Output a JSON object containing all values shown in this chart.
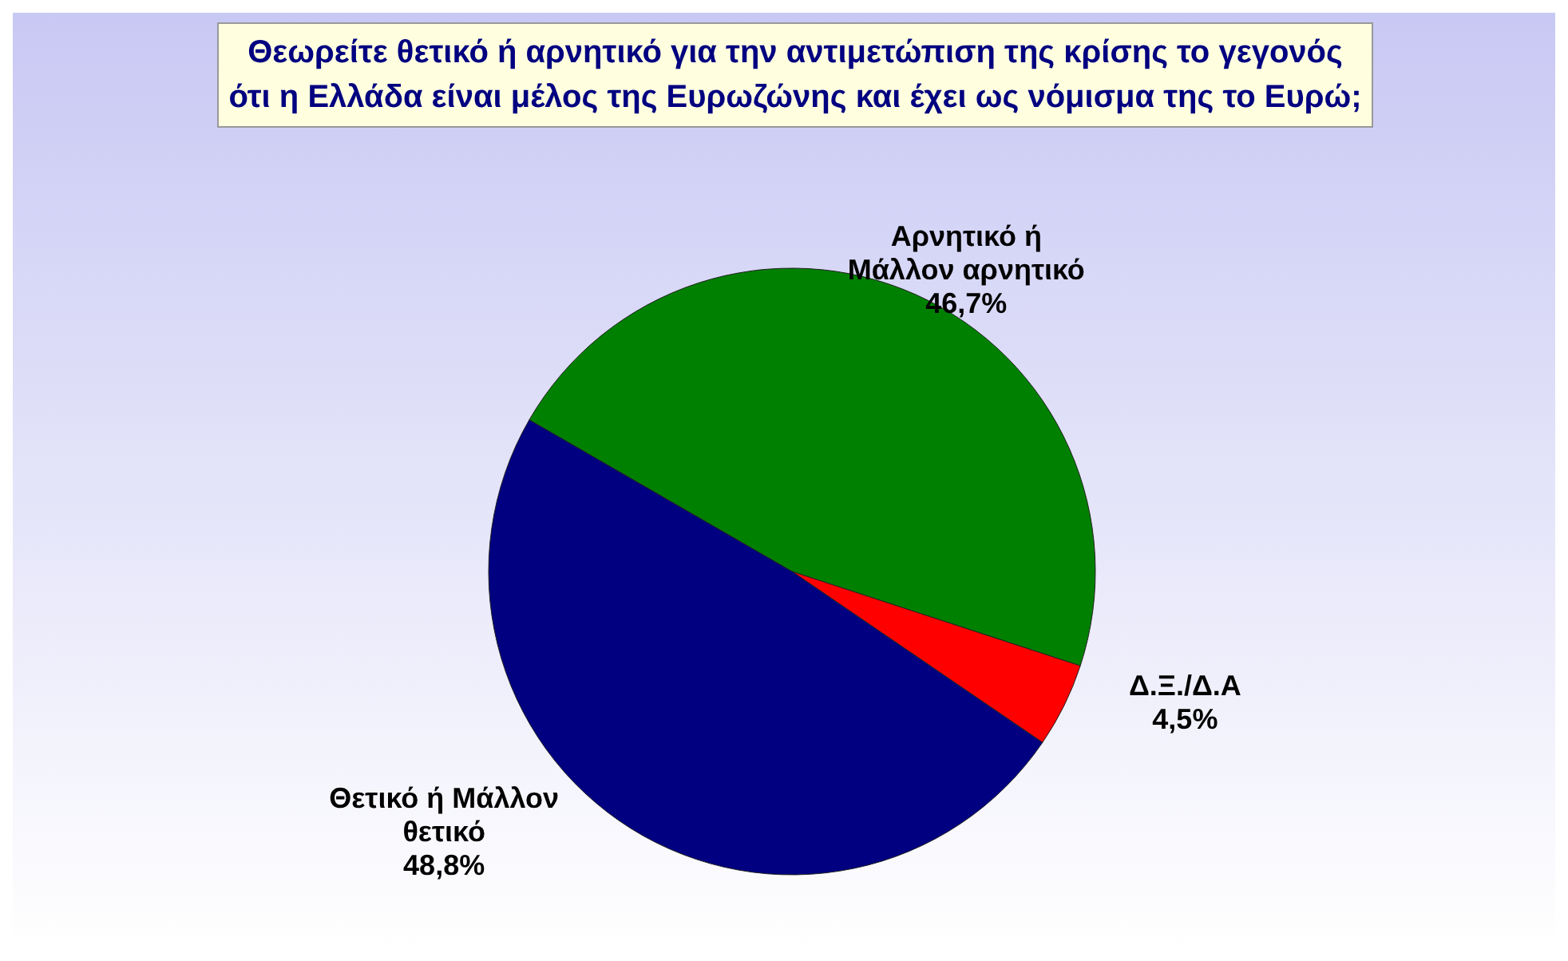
{
  "chart_data": {
    "type": "pie",
    "title": "Θεωρείτε θετικό ή αρνητικό για την αντιμετώπιση της κρίσης το γεγονός ότι η Ελλάδα είναι μέλος της Ευρωζώνης και έχει ως νόμισμα της το Ευρώ;",
    "categories": [
      "Αρνητικό ή Μάλλον αρνητικό",
      "Δ.Ξ./Δ.Α",
      "Θετικό ή Μάλλον θετικό"
    ],
    "values": [
      46.7,
      4.5,
      48.8
    ],
    "colors": [
      "#008000",
      "#ff0000",
      "#000080"
    ],
    "value_labels": [
      "46,7%",
      "4,5%",
      "48,8%"
    ]
  }
}
